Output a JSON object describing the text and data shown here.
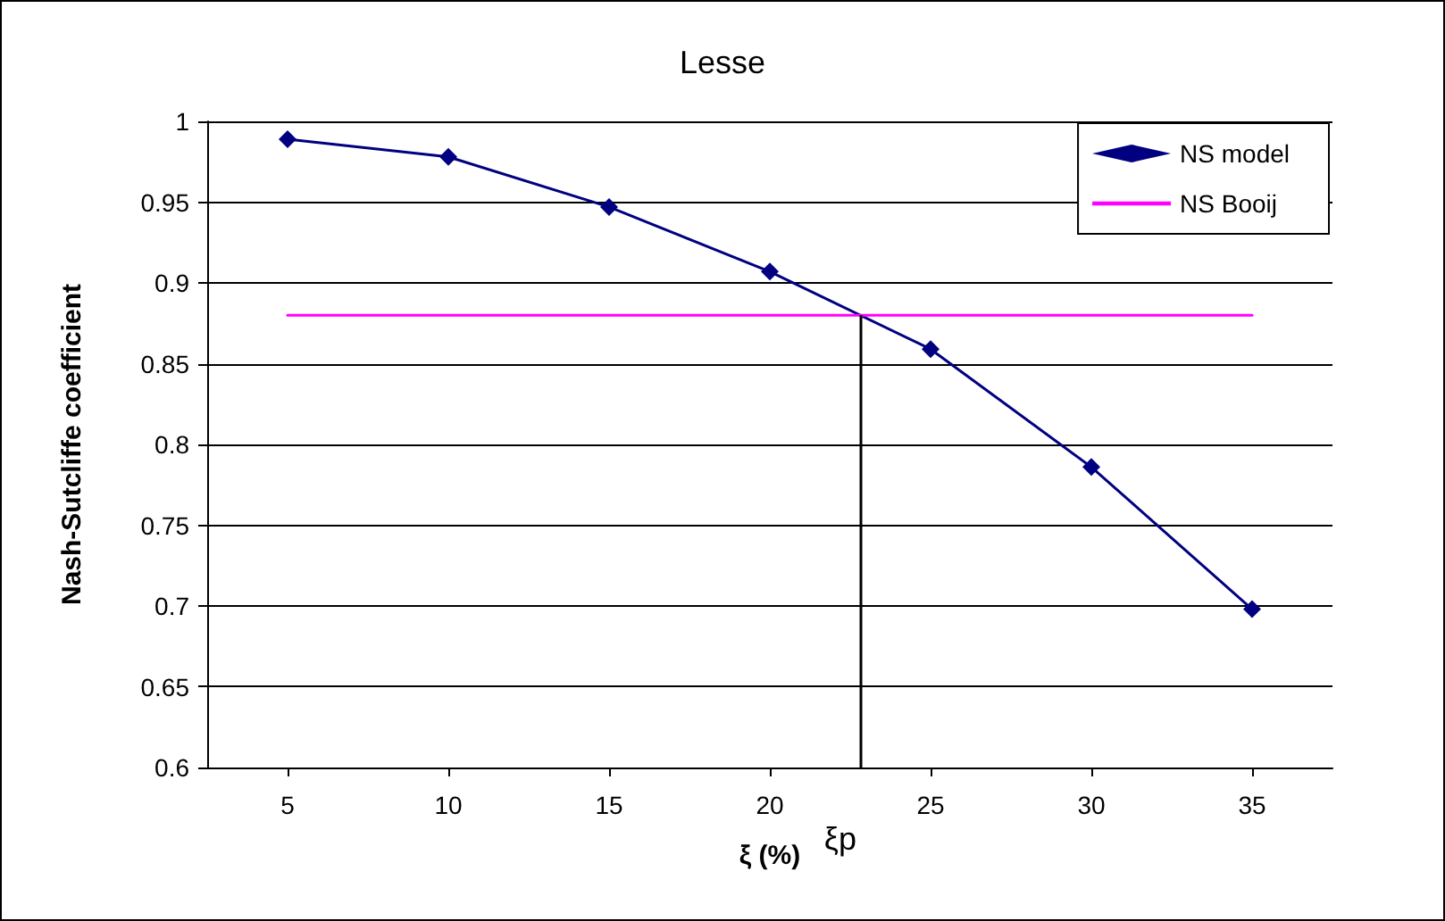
{
  "chart_data": {
    "type": "line",
    "title": "Lesse",
    "xlabel": "ξ (%)",
    "ylabel": "Nash-Sutcliffe coefficient",
    "x": [
      5,
      10,
      15,
      20,
      25,
      30,
      35
    ],
    "series": [
      {
        "name": "NS model",
        "color": "#000080",
        "values": [
          0.989,
          0.978,
          0.947,
          0.907,
          0.859,
          0.786,
          0.698
        ],
        "marker": "diamond"
      },
      {
        "name": "NS Booij",
        "color": "#ff00ff",
        "x": [
          5,
          35
        ],
        "values": [
          0.88,
          0.88
        ],
        "marker": "none"
      }
    ],
    "xlim": [
      2.5,
      37.5
    ],
    "xticks": [
      5,
      10,
      15,
      20,
      25,
      30,
      35
    ],
    "ylim": [
      0.6,
      1
    ],
    "yticks": [
      0.6,
      0.65,
      0.7,
      0.75,
      0.8,
      0.85,
      0.9,
      0.95,
      1
    ],
    "ref_lines": [
      {
        "axis": "x",
        "value": 22.8,
        "label": "ξp",
        "color": "#000000"
      }
    ],
    "grid": "y",
    "legend": "top right",
    "line_style": "solid"
  }
}
